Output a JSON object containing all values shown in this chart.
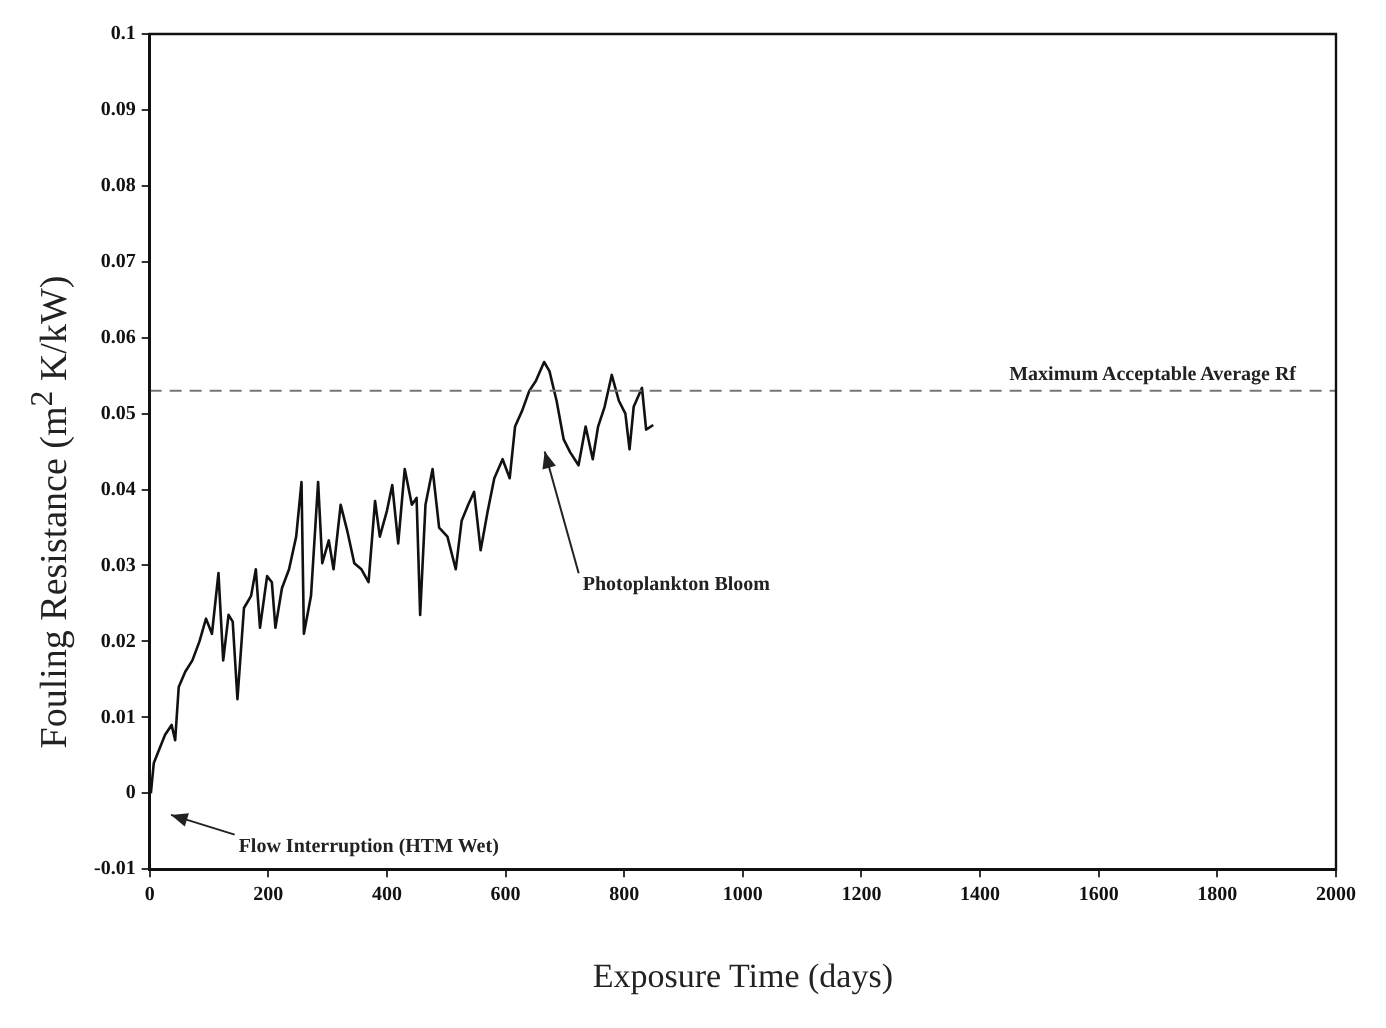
{
  "chart_data": {
    "type": "line",
    "xlabel": "Exposure Time (days)",
    "ylabel": "Fouling Resistance (m$^{2}$ K/kW)",
    "x": [
      2,
      7,
      26,
      37,
      43,
      49,
      60,
      72,
      84,
      95,
      105,
      116,
      124,
      133,
      140,
      148,
      159,
      171,
      179,
      186,
      198,
      206,
      212,
      223,
      235,
      247,
      256,
      260,
      272,
      284,
      291,
      302,
      310,
      322,
      333,
      345,
      357,
      369,
      380,
      388,
      400,
      409,
      419,
      430,
      442,
      450,
      456,
      465,
      477,
      488,
      502,
      516,
      526,
      537,
      547,
      558,
      570,
      581,
      595,
      607,
      616,
      628,
      640,
      651,
      665,
      674,
      686,
      698,
      709,
      723,
      735,
      747,
      756,
      767,
      779,
      791,
      802,
      809,
      816,
      830,
      837,
      849
    ],
    "series": [
      {
        "color": "#111111",
        "values": [
          0.0,
          0.004,
          0.0077,
          0.009,
          0.007,
          0.014,
          0.016,
          0.0175,
          0.02,
          0.023,
          0.021,
          0.029,
          0.0175,
          0.0235,
          0.0226,
          0.0124,
          0.0244,
          0.026,
          0.0295,
          0.0218,
          0.0286,
          0.0278,
          0.0218,
          0.027,
          0.0295,
          0.0338,
          0.041,
          0.021,
          0.026,
          0.041,
          0.0303,
          0.0333,
          0.0295,
          0.038,
          0.0346,
          0.0303,
          0.0295,
          0.0278,
          0.0385,
          0.0338,
          0.0372,
          0.0406,
          0.0329,
          0.0427,
          0.038,
          0.0389,
          0.0235,
          0.038,
          0.0427,
          0.035,
          0.0338,
          0.0295,
          0.0359,
          0.038,
          0.0397,
          0.032,
          0.0372,
          0.0415,
          0.044,
          0.0415,
          0.0483,
          0.0504,
          0.053,
          0.0543,
          0.0568,
          0.0556,
          0.0517,
          0.0466,
          0.0449,
          0.0432,
          0.0483,
          0.044,
          0.0483,
          0.0509,
          0.0551,
          0.0517,
          0.05,
          0.0453,
          0.0509,
          0.0534,
          0.0479,
          0.0485
        ]
      }
    ],
    "xlim": [
      0,
      2000
    ],
    "xticks": [
      0,
      200,
      400,
      600,
      800,
      1000,
      1200,
      1400,
      1600,
      1800,
      2000
    ],
    "ylim": [
      -0.01,
      0.1
    ],
    "yticks": [
      -0.01,
      0,
      0.01,
      0.02,
      0.03,
      0.04,
      0.05,
      0.06,
      0.07,
      0.08,
      0.09,
      0.1
    ],
    "grid": false,
    "legend": false,
    "marker": "none",
    "line_style": "solid",
    "ref_lines": [
      {
        "axis": "y",
        "value": 0.053,
        "label": "Maximum Acceptable Average Rf",
        "color": "#777777",
        "line_style": "dashed"
      }
    ],
    "annotations": [
      "Flow Interruption (HTM Wet)",
      "Photoplankton Bloom"
    ]
  }
}
